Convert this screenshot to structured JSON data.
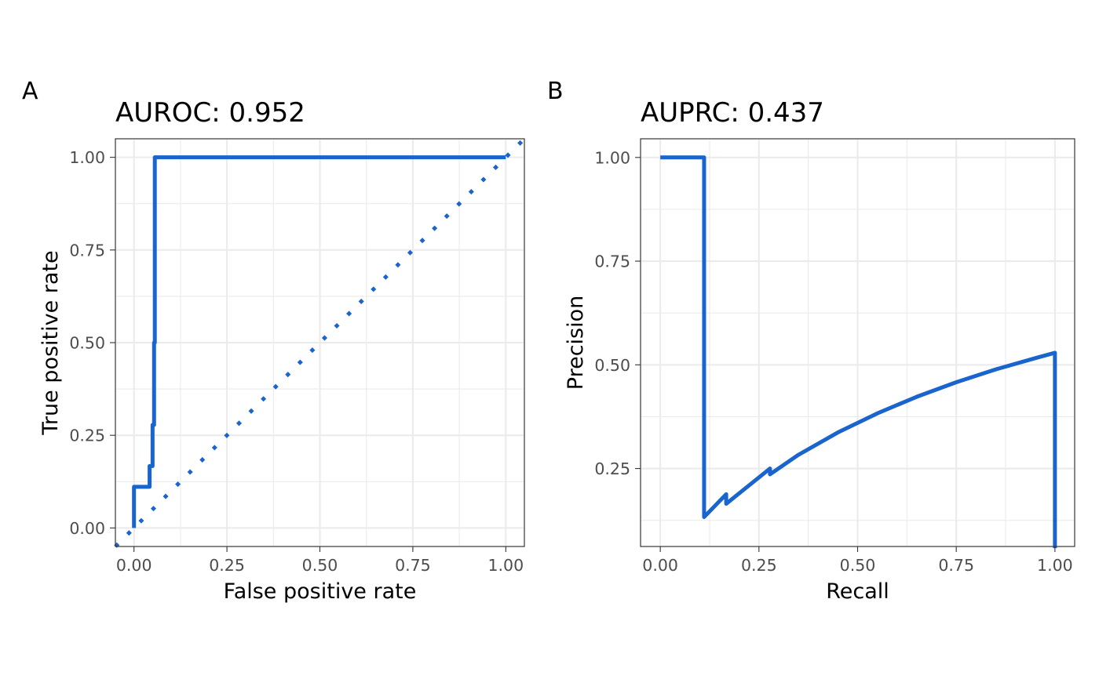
{
  "colors": {
    "curve": "#1964cd",
    "grid": "#ebebeb",
    "border": "#333333",
    "tick_text": "#4d4d4d"
  },
  "chart_data": [
    {
      "type": "line",
      "panel_tag": "A",
      "title": "AUROC: 0.952",
      "xlabel": "False positive rate",
      "ylabel": "True positive rate",
      "xlim": [
        -0.05,
        1.05
      ],
      "ylim": [
        -0.05,
        1.05
      ],
      "x_ticks": [
        0,
        0.25,
        0.5,
        0.75,
        1
      ],
      "x_tick_labels": [
        "0.00",
        "0.25",
        "0.50",
        "0.75",
        "1.00"
      ],
      "y_ticks": [
        0,
        0.25,
        0.5,
        0.75,
        1
      ],
      "y_tick_labels": [
        "0.00",
        "0.25",
        "0.50",
        "0.75",
        "1.00"
      ],
      "grid": true,
      "legend": "none",
      "series": [
        {
          "style": "solid",
          "x": [
            0,
            0,
            0.042,
            0.042,
            0.05,
            0.05,
            0.054,
            0.054,
            0.056,
            0.056,
            1.0
          ],
          "y": [
            0,
            0.111,
            0.111,
            0.167,
            0.167,
            0.278,
            0.278,
            0.5,
            0.5,
            1.0,
            1.0
          ]
        },
        {
          "style": "dotted",
          "x": [
            -0.05,
            1.05
          ],
          "y": [
            -0.05,
            1.05
          ]
        }
      ]
    },
    {
      "type": "line",
      "panel_tag": "B",
      "title": "AUPRC: 0.437",
      "xlabel": "Recall",
      "ylabel": "Precision",
      "xlim": [
        -0.05,
        1.05
      ],
      "ylim": [
        0.062,
        1.045
      ],
      "x_ticks": [
        0,
        0.25,
        0.5,
        0.75,
        1
      ],
      "x_tick_labels": [
        "0.00",
        "0.25",
        "0.50",
        "0.75",
        "1.00"
      ],
      "y_ticks": [
        0.25,
        0.5,
        0.75,
        1
      ],
      "y_tick_labels": [
        "0.25",
        "0.50",
        "0.75",
        "1.00"
      ],
      "grid": true,
      "legend": "none",
      "series": [
        {
          "style": "solid",
          "x": [
            0,
            0.111,
            0.111,
            0.167,
            0.167,
            0.278,
            0.278,
            0.35,
            0.45,
            0.55,
            0.65,
            0.75,
            0.85,
            0.95,
            1.0,
            1.0
          ],
          "y": [
            1.0,
            1.0,
            0.133,
            0.188,
            0.165,
            0.25,
            0.236,
            0.283,
            0.337,
            0.383,
            0.423,
            0.458,
            0.489,
            0.516,
            0.529,
            0.058
          ]
        }
      ]
    }
  ]
}
